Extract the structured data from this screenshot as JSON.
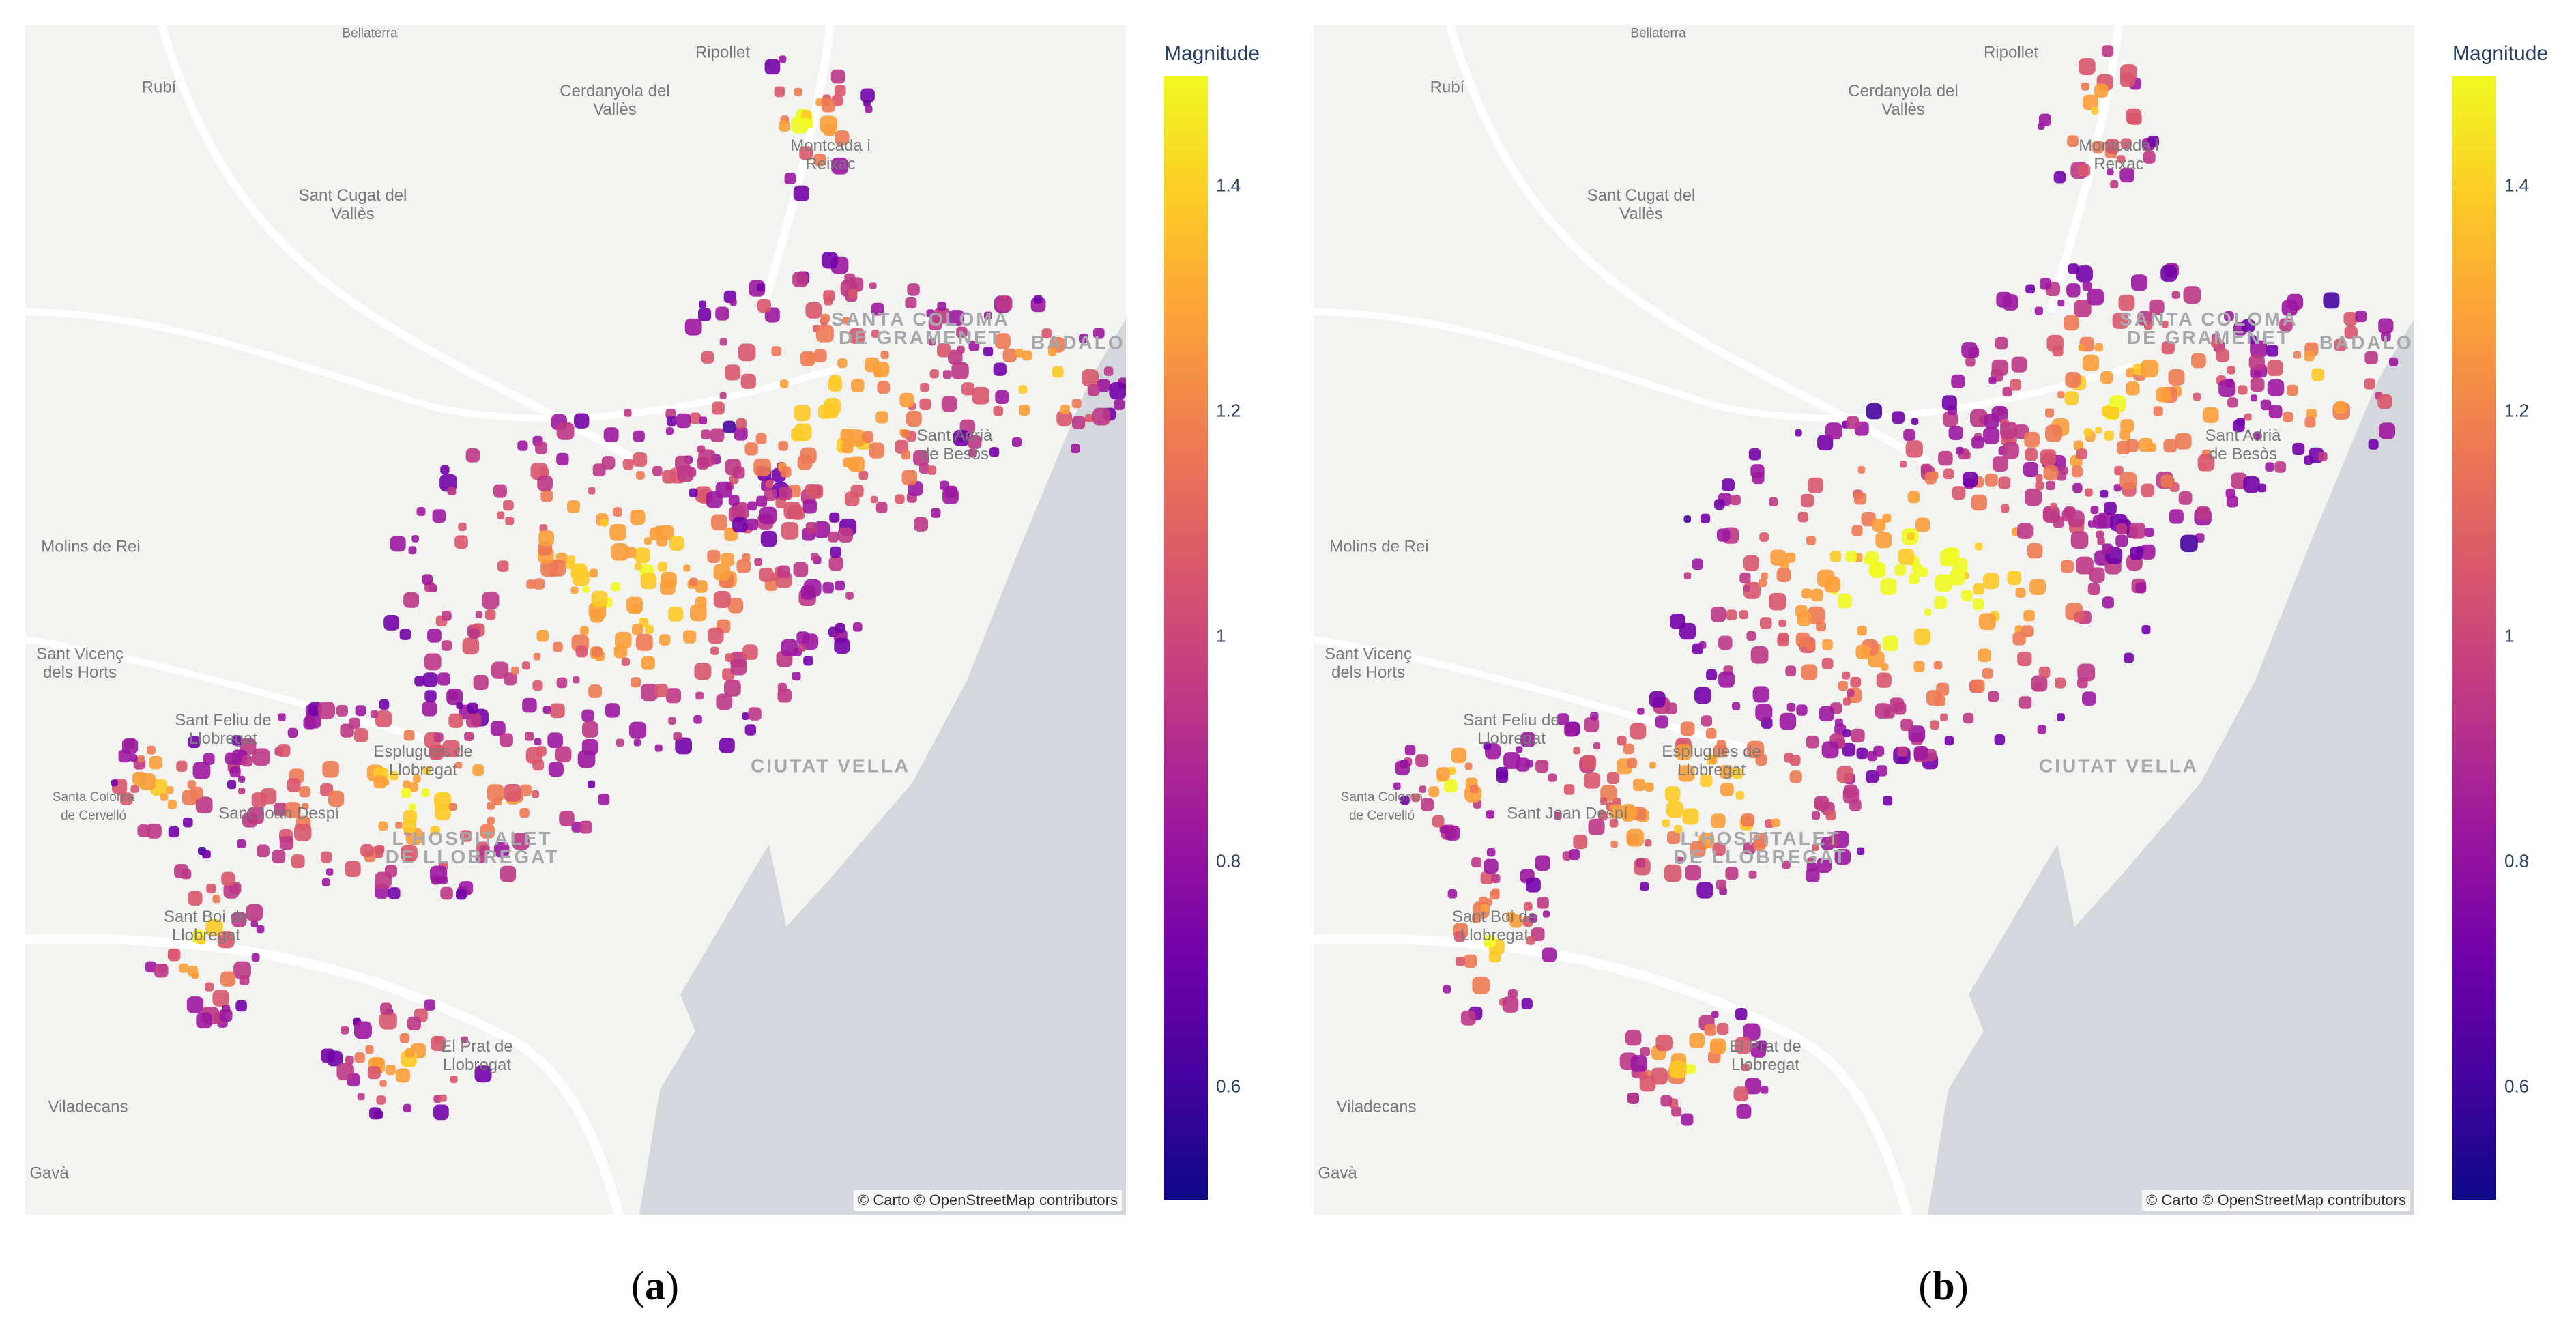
{
  "panels": [
    {
      "caption_letter": "a",
      "attribution": "© Carto © OpenStreetMap contributors",
      "colorbar": {
        "title": "Magnitude",
        "ticks": [
          "1.4",
          "1.2",
          "1",
          "0.8",
          "0.6"
        ],
        "range": [
          0.5,
          1.5
        ]
      },
      "colorscale": [
        "#0d0887",
        "#46039f",
        "#7201a8",
        "#9c179e",
        "#bd3786",
        "#d8576b",
        "#ed7953",
        "#fb9f3a",
        "#fdca26",
        "#f0f921"
      ]
    },
    {
      "caption_letter": "b",
      "attribution": "© Carto © OpenStreetMap contributors",
      "colorbar": {
        "title": "Magnitude",
        "ticks": [
          "1.4",
          "1.2",
          "1",
          "0.8",
          "0.6"
        ],
        "range": [
          0.5,
          1.5
        ]
      },
      "colorscale": [
        "#0d0887",
        "#46039f",
        "#7201a8",
        "#9c179e",
        "#bd3786",
        "#d8576b",
        "#ed7953",
        "#fb9f3a",
        "#fdca26",
        "#f0f921"
      ]
    }
  ],
  "map_labels": {
    "bellaterra": "Bellaterra",
    "ripollet": "Ripollet",
    "rubi": "Rubí",
    "cerdanyola": "Cerdanyola del\nVallès",
    "montcada": "Montcada i\nReixac",
    "sant_cugat": "Sant Cugat del\nVallès",
    "santa_coloma": "SANTA COLOMA\nDE GRAMENET",
    "badalona": "BADALONA",
    "sant_adria": "Sant Adrià\nde Besòs",
    "molins": "Molins de Rei",
    "sant_vicenc": "Sant Vicenç\ndels Horts",
    "sant_feliu": "Sant Feliu de\nLlobregat",
    "esplugues": "Esplugues de\nLlobregat",
    "santa_coloma_cervello": "Santa Coloma\nde Cervelló",
    "sant_joan_despi": "Sant Joan Despí",
    "sant_boi": "Sant Boi de\nLlobregat",
    "hospitalet": "L'HOSPITALET\nDE LLOBREGAT",
    "el_prat": "El Prat de\nLlobregat",
    "viladecans": "Viladecans",
    "gava": "Gavà",
    "ciutat_vella": "CIUTAT VELLA"
  }
}
